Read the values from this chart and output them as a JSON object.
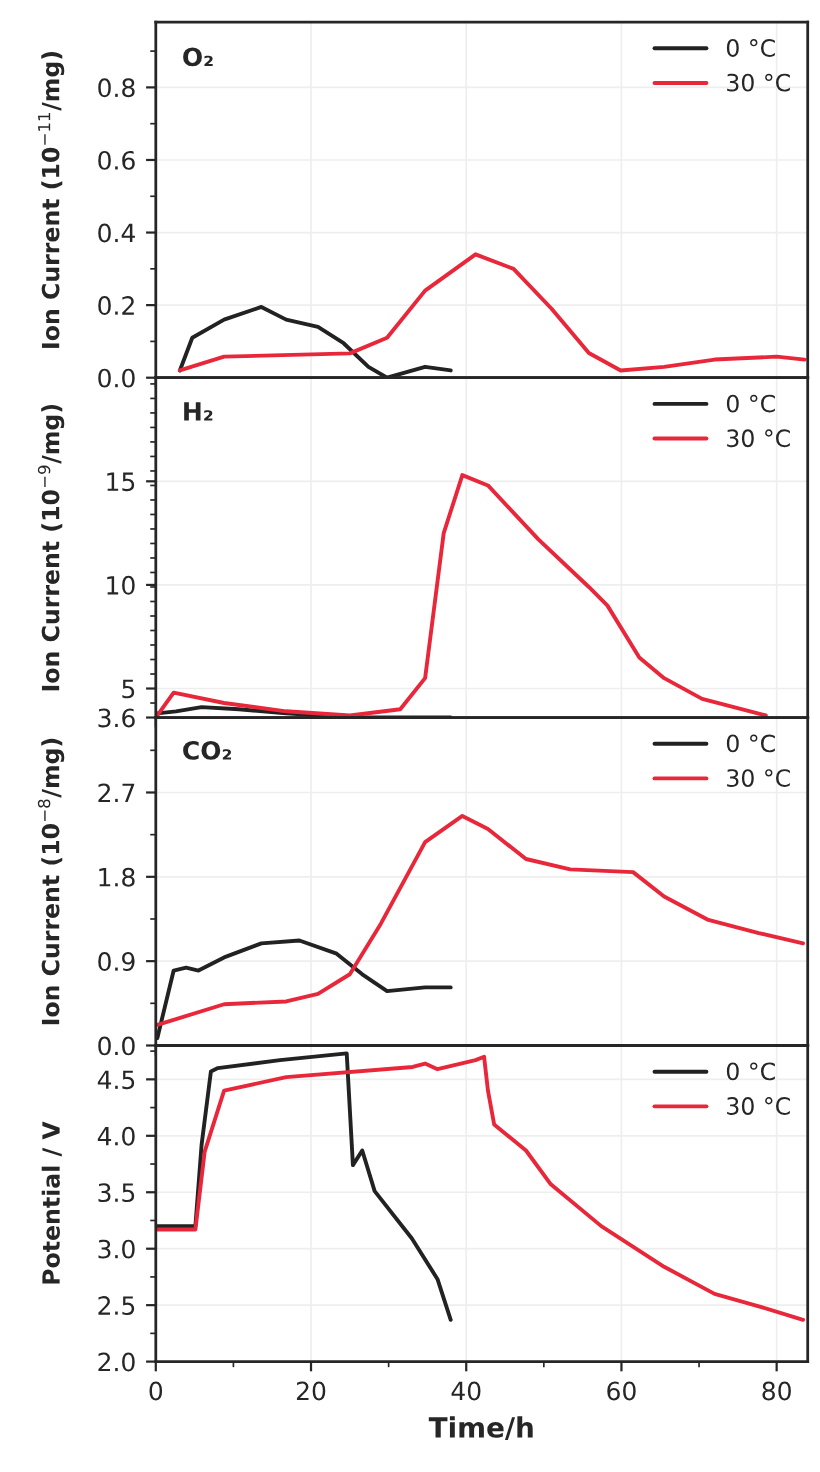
{
  "chart_data": [
    {
      "type": "line",
      "annotations": [
        "O₂"
      ],
      "ylabel": "Ion Current (10$^{−11}$/mg)",
      "xlim": [
        0,
        84
      ],
      "xticks": [
        0,
        20,
        40,
        60,
        80
      ],
      "ylim": [
        0,
        0.98
      ],
      "yticks": [
        {
          "value": 0,
          "label": "0.0"
        },
        0.2,
        0.4,
        0.6,
        0.8
      ],
      "tick_labels": "y",
      "legend": "top right",
      "grid": true,
      "series": [
        {
          "name": "0 °C",
          "color": "#222222",
          "x": [
            3.1,
            4.7,
            8.8,
            13.6,
            16.8,
            20.9,
            24.2,
            27.4,
            29.8,
            34.7,
            38
          ],
          "values": [
            0.02,
            0.11,
            0.16,
            0.195,
            0.16,
            0.14,
            0.095,
            0.03,
            0.0,
            0.03,
            0.02
          ]
        },
        {
          "name": "30 °C",
          "color": "#e8283a",
          "x": [
            3.1,
            8.8,
            25,
            29.8,
            34.7,
            41.2,
            46.1,
            51,
            55.8,
            59.9,
            65.5,
            72,
            80,
            83.6
          ],
          "values": [
            0.02,
            0.058,
            0.067,
            0.11,
            0.24,
            0.34,
            0.3,
            0.19,
            0.068,
            0.02,
            0.03,
            0.05,
            0.058,
            0.05
          ]
        }
      ]
    },
    {
      "type": "line",
      "annotations": [
        "H₂"
      ],
      "ylabel": "Ion Current (10$^{−9}$/mg)",
      "xlim": [
        0,
        84
      ],
      "xticks": [
        0,
        20,
        40,
        60,
        80
      ],
      "ylim": [
        3.6,
        20
      ],
      "yticks": [
        3.6,
        5,
        10,
        15
      ],
      "tick_labels": "y",
      "legend": "top right",
      "grid": true,
      "series": [
        {
          "name": "0 °C",
          "color": "#222222",
          "x": [
            0.2,
            2.6,
            5.9,
            10.7,
            16.8,
            25,
            38
          ],
          "values": [
            3.8,
            3.9,
            4.1,
            4.0,
            3.8,
            3.6,
            3.6
          ]
        },
        {
          "name": "30 °C",
          "color": "#e8283a",
          "x": [
            0.2,
            2.3,
            8.8,
            16.8,
            25,
            31.5,
            34.7,
            37.1,
            39.5,
            42.8,
            49.3,
            55.8,
            58.2,
            62.3,
            65.5,
            70.4,
            78.6
          ],
          "values": [
            3.7,
            4.8,
            4.3,
            3.9,
            3.7,
            4.0,
            5.5,
            12.5,
            15.3,
            14.8,
            12.2,
            9.9,
            9.0,
            6.5,
            5.5,
            4.5,
            3.7
          ]
        }
      ]
    },
    {
      "type": "line",
      "annotations": [
        "CO₂"
      ],
      "ylabel": "Ion Current (10$^{−8}$/mg)",
      "xlim": [
        0,
        84
      ],
      "xticks": [
        0,
        20,
        40,
        60,
        80
      ],
      "ylim": [
        0,
        3.5
      ],
      "yticks": [
        {
          "value": 0,
          "label": "0.0"
        },
        0.9,
        1.8,
        2.7
      ],
      "tick_labels": "y",
      "legend": "top right",
      "grid": true,
      "series": [
        {
          "name": "0 °C",
          "color": "#222222",
          "x": [
            0.2,
            2.3,
            3.9,
            5.5,
            8.8,
            13.6,
            18.5,
            23.3,
            26.6,
            29.8,
            34.7,
            38
          ],
          "values": [
            0.08,
            0.8,
            0.83,
            0.8,
            0.94,
            1.09,
            1.12,
            0.98,
            0.76,
            0.58,
            0.62,
            0.62
          ]
        },
        {
          "name": "30 °C",
          "color": "#e8283a",
          "x": [
            0.2,
            8.8,
            16.8,
            20.9,
            25,
            29,
            34.7,
            39.5,
            42.8,
            47.7,
            53.4,
            61.5,
            65.5,
            71.2,
            77.7,
            83.4
          ],
          "values": [
            0.22,
            0.44,
            0.47,
            0.55,
            0.76,
            1.3,
            2.17,
            2.45,
            2.31,
            1.99,
            1.88,
            1.85,
            1.59,
            1.34,
            1.2,
            1.09
          ]
        }
      ]
    },
    {
      "type": "line",
      "ylabel": "Potential / V",
      "xlabel": "Time/h",
      "xlim": [
        0,
        84
      ],
      "xticks": [
        0,
        20,
        40,
        60,
        80
      ],
      "ylim": [
        2.0,
        4.8
      ],
      "yticks": [
        {
          "value": 2.0,
          "label": "2.0"
        },
        2.5,
        {
          "value": 3.0,
          "label": "3.0"
        },
        3.5,
        {
          "value": 4.0,
          "label": "4.0"
        },
        4.5
      ],
      "legend": "top right",
      "grid": true,
      "series": [
        {
          "name": "0 °C",
          "color": "#222222",
          "x": [
            0.2,
            5.1,
            5.9,
            7.1,
            8,
            16,
            24.6,
            25.4,
            26.6,
            28.2,
            33,
            36.3,
            38
          ],
          "values": [
            3.2,
            3.2,
            3.92,
            4.57,
            4.6,
            4.67,
            4.73,
            3.74,
            3.87,
            3.51,
            3.09,
            2.73,
            2.37
          ]
        },
        {
          "name": "30 °C",
          "color": "#e8283a",
          "x": [
            0.2,
            5.1,
            6.3,
            8.8,
            16.8,
            33.1,
            34.7,
            36.3,
            41.2,
            42.3,
            42.8,
            43.6,
            47.7,
            50.9,
            57.4,
            65.5,
            72,
            77.7,
            83.4
          ],
          "values": [
            3.17,
            3.17,
            3.86,
            4.4,
            4.52,
            4.61,
            4.64,
            4.59,
            4.67,
            4.7,
            4.4,
            4.1,
            3.87,
            3.57,
            3.2,
            2.84,
            2.6,
            2.49,
            2.37
          ]
        }
      ]
    }
  ]
}
